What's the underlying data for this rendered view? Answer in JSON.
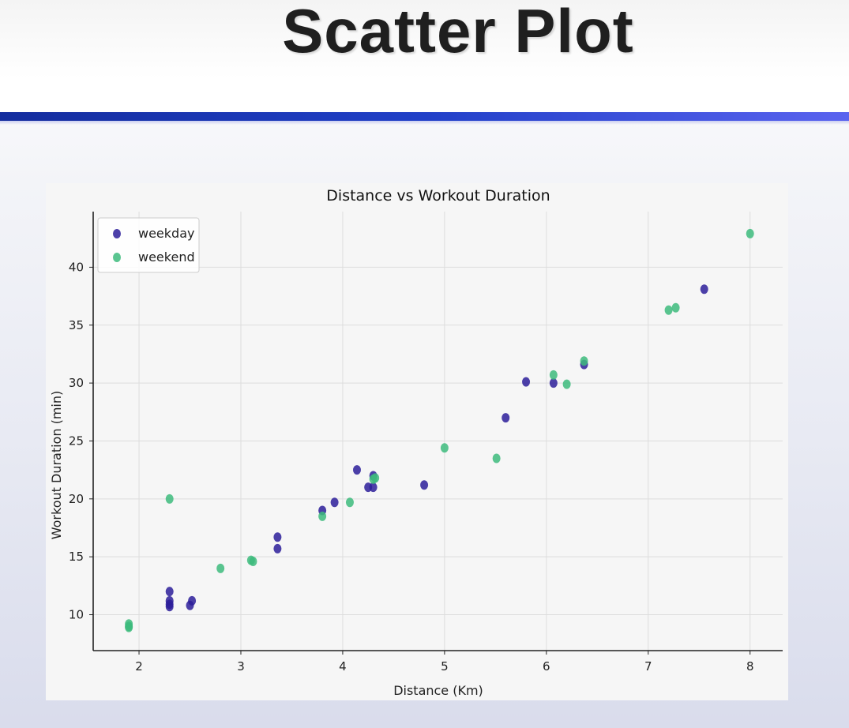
{
  "slide": {
    "title": "Scatter Plot",
    "accent_color": "#2140c8"
  },
  "chart_data": {
    "type": "scatter",
    "title": "Distance vs Workout Duration",
    "xlabel": "Distance (Km)",
    "ylabel": "Workout Duration (min)",
    "xlim": [
      1.55,
      8.32
    ],
    "ylim": [
      6.9,
      44.8
    ],
    "xticks": [
      2,
      3,
      4,
      5,
      6,
      7,
      8
    ],
    "yticks": [
      10,
      15,
      20,
      25,
      30,
      35,
      40
    ],
    "grid": true,
    "legend_position": "top-left",
    "series": [
      {
        "name": "weekday",
        "color": "#2d1f9a",
        "points": [
          [
            2.3,
            12.0
          ],
          [
            2.3,
            11.2
          ],
          [
            2.3,
            10.9
          ],
          [
            2.3,
            10.7
          ],
          [
            2.5,
            10.8
          ],
          [
            2.52,
            11.2
          ],
          [
            3.36,
            16.7
          ],
          [
            3.36,
            15.7
          ],
          [
            3.8,
            19.0
          ],
          [
            3.92,
            19.7
          ],
          [
            4.14,
            22.5
          ],
          [
            4.25,
            21.0
          ],
          [
            4.3,
            22.0
          ],
          [
            4.3,
            21.0
          ],
          [
            4.8,
            21.2
          ],
          [
            5.6,
            27.0
          ],
          [
            5.8,
            30.1
          ],
          [
            6.07,
            30.0
          ],
          [
            6.37,
            31.6
          ],
          [
            7.55,
            38.1
          ]
        ]
      },
      {
        "name": "weekend",
        "color": "#3dbb7d",
        "points": [
          [
            1.9,
            9.2
          ],
          [
            1.9,
            9.0
          ],
          [
            1.9,
            8.9
          ],
          [
            2.3,
            20.0
          ],
          [
            2.8,
            14.0
          ],
          [
            3.1,
            14.7
          ],
          [
            3.12,
            14.6
          ],
          [
            3.8,
            18.5
          ],
          [
            4.07,
            19.7
          ],
          [
            4.3,
            21.7
          ],
          [
            4.32,
            21.8
          ],
          [
            5.0,
            24.4
          ],
          [
            5.51,
            23.5
          ],
          [
            6.07,
            30.7
          ],
          [
            6.2,
            29.9
          ],
          [
            6.37,
            31.9
          ],
          [
            7.2,
            36.3
          ],
          [
            7.27,
            36.5
          ],
          [
            8.0,
            42.9
          ]
        ]
      }
    ]
  }
}
